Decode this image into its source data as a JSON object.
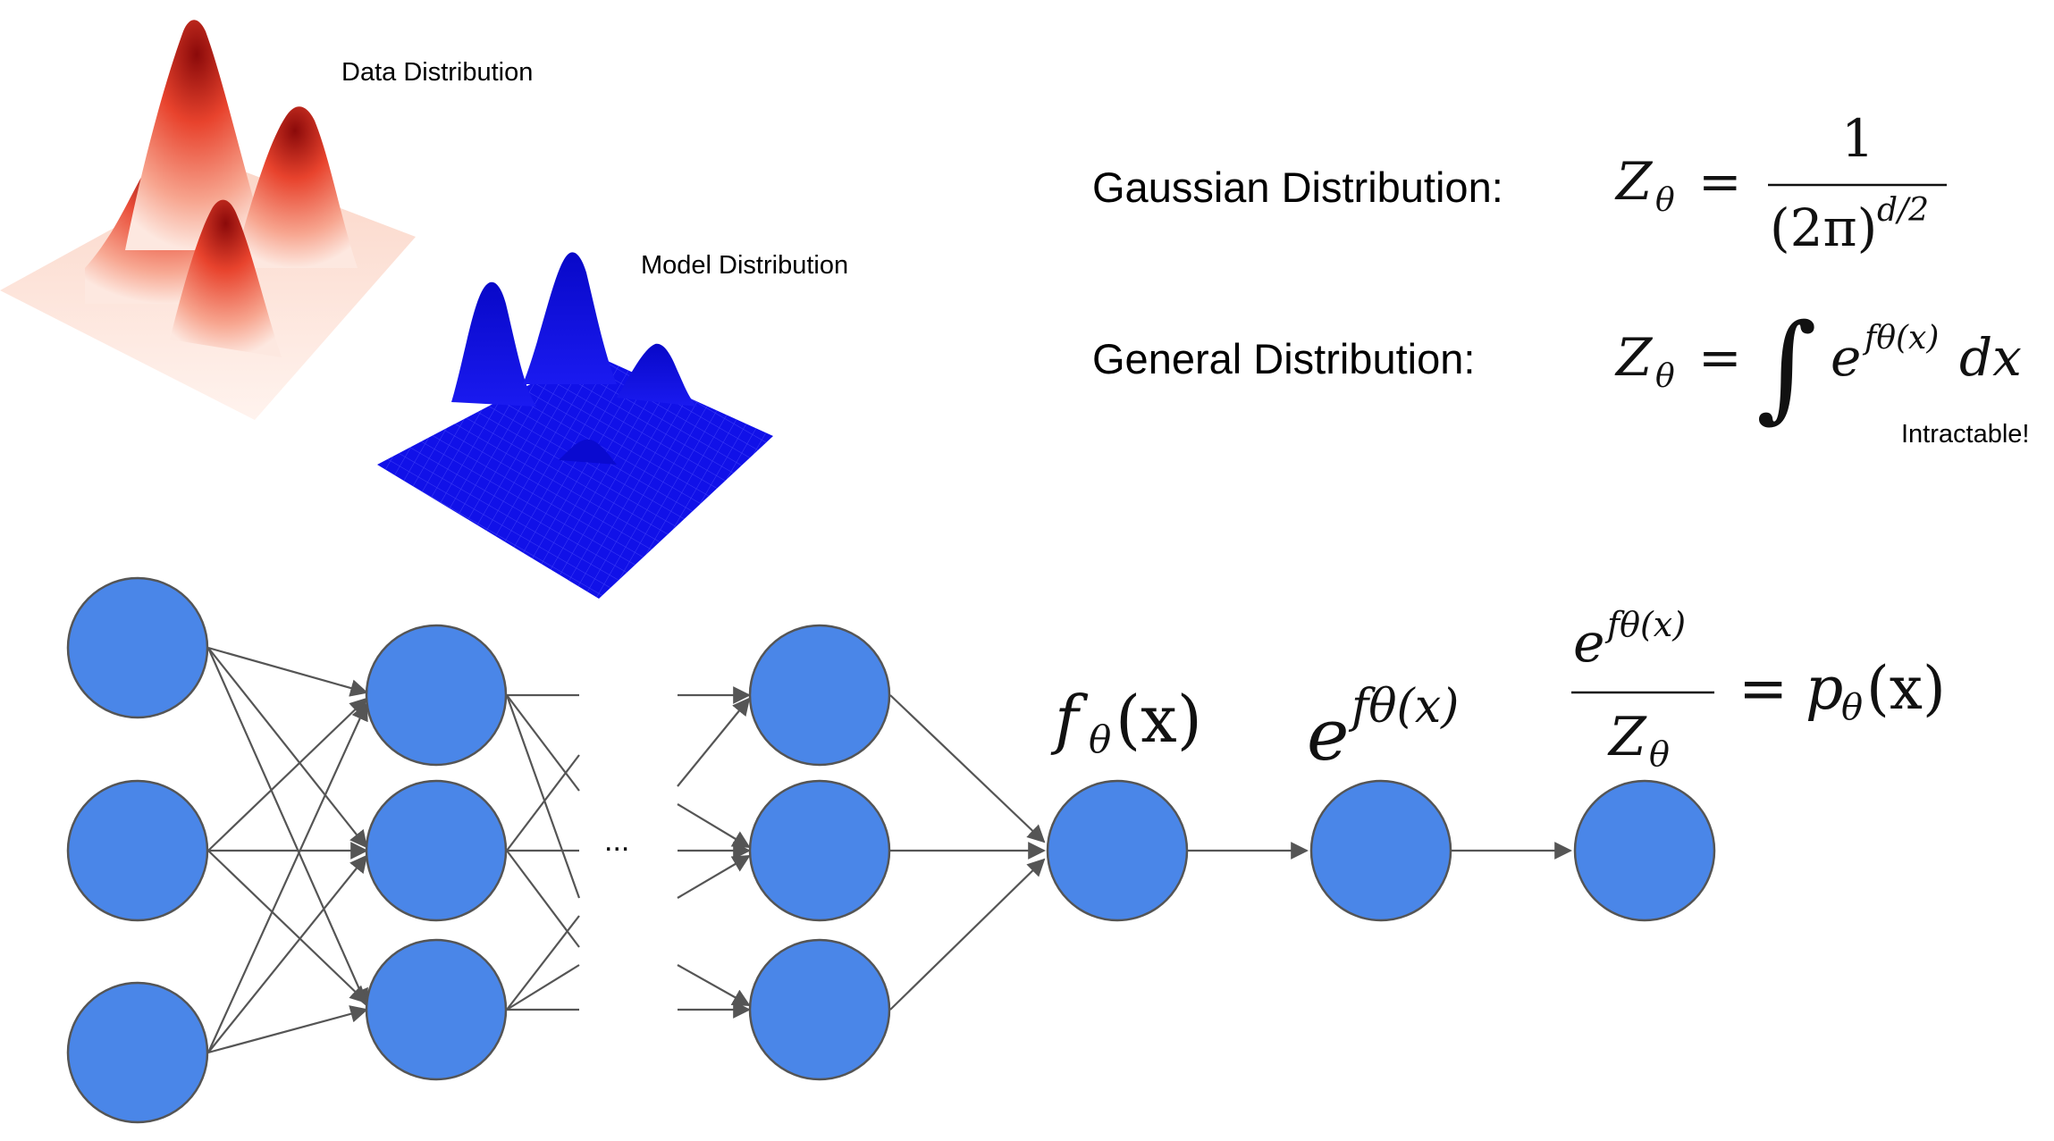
{
  "labels": {
    "data_distribution": "Data Distribution",
    "model_distribution": "Model Distribution",
    "gaussian_label": "Gaussian Distribution:",
    "general_label": "General Distribution:",
    "intractable": "Intractable!",
    "ellipsis": "..."
  },
  "formulas": {
    "z_symbol": "Z",
    "theta": "θ",
    "equals": "=",
    "numerator_one": "1",
    "two_pi": "(2π)",
    "d_over_2": "d/2",
    "integral": "∫",
    "e": "e",
    "f_theta_x_exponent": "fθ(x)",
    "dx": "dx",
    "f": "f",
    "paren_x": "(x)",
    "p": "p"
  },
  "colors": {
    "node_fill": "#4A86E8",
    "edge": "#555555",
    "data_surface": "#e03020",
    "model_surface": "#1010e0"
  }
}
